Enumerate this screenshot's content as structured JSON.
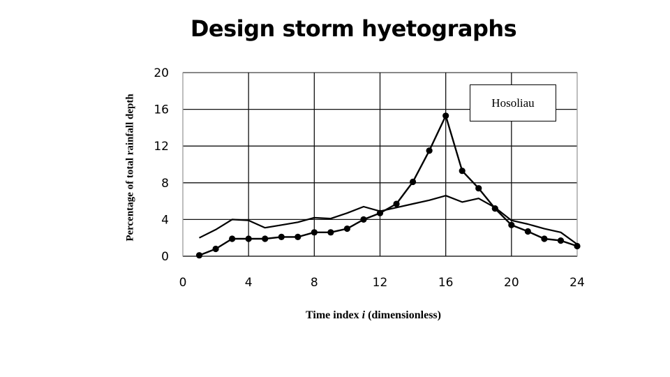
{
  "chart_data": {
    "type": "line",
    "title": "Design storm hyetographs",
    "xlabel_pre": "Time index ",
    "xlabel_var": "i",
    "xlabel_post": " (dimensionless)",
    "ylabel": "Percentage of total rainfall depth",
    "xlim": [
      0,
      24
    ],
    "ylim": [
      0,
      20
    ],
    "xticks": [
      0,
      4,
      8,
      12,
      16,
      20,
      24
    ],
    "yticks": [
      0,
      4,
      8,
      12,
      16,
      20
    ],
    "grid": true,
    "legend_text": "Hosoliau",
    "legend_position": "top-right",
    "series": [
      {
        "name": "Hosoliau",
        "marker": "circle",
        "color": "#000000",
        "x": [
          1,
          2,
          3,
          4,
          5,
          6,
          7,
          8,
          9,
          10,
          11,
          12,
          13,
          14,
          15,
          16,
          17,
          18,
          19,
          20,
          21,
          22,
          23,
          24
        ],
        "y": [
          0.1,
          0.8,
          1.9,
          1.9,
          1.9,
          2.1,
          2.1,
          2.6,
          2.6,
          3.0,
          4.0,
          4.7,
          5.7,
          8.1,
          11.5,
          15.3,
          9.3,
          7.4,
          5.2,
          3.4,
          2.7,
          1.9,
          1.7,
          1.1
        ]
      },
      {
        "marker": "none",
        "color": "#000000",
        "x": [
          1,
          2,
          3,
          4,
          5,
          6,
          7,
          8,
          9,
          10,
          11,
          12,
          13,
          14,
          15,
          16,
          17,
          18,
          19,
          20,
          21,
          22,
          23,
          24
        ],
        "y": [
          2.0,
          2.9,
          4.0,
          3.9,
          3.1,
          3.4,
          3.7,
          4.2,
          4.1,
          4.7,
          5.4,
          4.9,
          5.3,
          5.7,
          6.1,
          6.6,
          5.9,
          6.3,
          5.3,
          3.9,
          3.5,
          3.0,
          2.6,
          1.3
        ]
      }
    ]
  }
}
